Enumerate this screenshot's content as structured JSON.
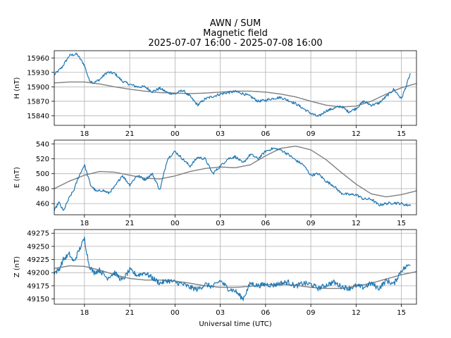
{
  "title": {
    "line1": "AWN / SUM",
    "line2": "Magnetic field",
    "line3": "2025-07-07 16:00 - 2025-07-08 16:00"
  },
  "xlabel": "Universal time (UTC)",
  "colors": {
    "observed": "#1f77b4",
    "reference": "#808080",
    "grid": "#b0b0b0"
  },
  "chart_data": [
    {
      "type": "line",
      "ylabel": "H (nT)",
      "x_hours_range": [
        0,
        24
      ],
      "x_tick_hours": [
        2,
        5,
        8,
        11,
        14,
        17,
        20,
        23
      ],
      "x_tick_labels": [
        "18",
        "21",
        "00",
        "03",
        "06",
        "09",
        "12",
        "15"
      ],
      "ylim": [
        15820,
        15975
      ],
      "yticks": [
        15840,
        15870,
        15900,
        15930,
        15960
      ],
      "series": [
        {
          "name": "observed",
          "x": [
            0,
            0.5,
            1,
            1.5,
            2,
            2.3,
            2.6,
            3,
            3.5,
            4,
            4.5,
            5,
            5.5,
            6,
            6.5,
            7,
            7.5,
            8,
            8.5,
            9,
            9.5,
            10,
            10.5,
            11,
            11.5,
            12,
            12.5,
            13,
            13.5,
            14,
            14.5,
            15,
            15.5,
            16,
            16.5,
            17,
            17.5,
            18,
            18.5,
            19,
            19.5,
            20,
            20.5,
            21,
            21.5,
            22,
            22.5,
            23,
            23.3,
            23.6
          ],
          "y": [
            15925,
            15940,
            15965,
            15968,
            15945,
            15915,
            15908,
            15915,
            15930,
            15928,
            15912,
            15905,
            15900,
            15900,
            15890,
            15897,
            15888,
            15885,
            15893,
            15880,
            15862,
            15875,
            15880,
            15885,
            15888,
            15890,
            15886,
            15880,
            15870,
            15872,
            15876,
            15878,
            15872,
            15865,
            15855,
            15845,
            15838,
            15850,
            15855,
            15860,
            15848,
            15855,
            15870,
            15862,
            15866,
            15880,
            15895,
            15875,
            15900,
            15928
          ]
        },
        {
          "name": "reference",
          "x": [
            0,
            1,
            2,
            3,
            4,
            5,
            6,
            7,
            8,
            9,
            10,
            11,
            12,
            13,
            14,
            15,
            16,
            17,
            18,
            19,
            20,
            21,
            22,
            23,
            24
          ],
          "y": [
            15908,
            15910,
            15910,
            15906,
            15900,
            15895,
            15891,
            15888,
            15887,
            15886,
            15887,
            15889,
            15891,
            15891,
            15889,
            15885,
            15879,
            15870,
            15862,
            15858,
            15860,
            15870,
            15885,
            15898,
            15907
          ]
        }
      ]
    },
    {
      "type": "line",
      "ylabel": "E (nT)",
      "x_hours_range": [
        0,
        24
      ],
      "x_tick_hours": [
        2,
        5,
        8,
        11,
        14,
        17,
        20,
        23
      ],
      "x_tick_labels": [
        "18",
        "21",
        "00",
        "03",
        "06",
        "09",
        "12",
        "15"
      ],
      "ylim": [
        445,
        545
      ],
      "yticks": [
        460,
        480,
        500,
        520,
        540
      ],
      "series": [
        {
          "name": "observed",
          "x": [
            0,
            0.3,
            0.6,
            1,
            1.3,
            1.6,
            2,
            2.4,
            2.8,
            3.2,
            3.6,
            4,
            4.5,
            5,
            5.5,
            6,
            6.5,
            7,
            7.5,
            8,
            8.5,
            9,
            9.5,
            10,
            10.5,
            11,
            11.5,
            12,
            12.5,
            13,
            13.5,
            14,
            14.5,
            15,
            15.5,
            16,
            16.5,
            17,
            17.5,
            18,
            18.5,
            19,
            19.5,
            20,
            20.5,
            21,
            21.5,
            22,
            22.5,
            23,
            23.3,
            23.6
          ],
          "y": [
            450,
            462,
            450,
            468,
            478,
            495,
            512,
            485,
            476,
            478,
            474,
            482,
            498,
            485,
            498,
            492,
            500,
            478,
            520,
            530,
            520,
            510,
            522,
            520,
            500,
            510,
            520,
            523,
            514,
            526,
            520,
            530,
            534,
            532,
            526,
            518,
            512,
            498,
            500,
            490,
            484,
            474,
            472,
            472,
            466,
            466,
            458,
            460,
            461,
            460,
            458,
            458
          ]
        },
        {
          "name": "reference",
          "x": [
            0,
            1,
            2,
            3,
            4,
            5,
            6,
            7,
            8,
            9,
            10,
            11,
            12,
            13,
            14,
            15,
            16,
            17,
            18,
            19,
            20,
            21,
            22,
            23,
            24
          ],
          "y": [
            480,
            490,
            498,
            503,
            502,
            498,
            494,
            493,
            497,
            503,
            507,
            509,
            508,
            512,
            524,
            534,
            537,
            532,
            519,
            502,
            486,
            473,
            469,
            472,
            477
          ]
        }
      ]
    },
    {
      "type": "line",
      "ylabel": "Z (nT)",
      "x_hours_range": [
        0,
        24
      ],
      "x_tick_hours": [
        2,
        5,
        8,
        11,
        14,
        17,
        20,
        23
      ],
      "x_tick_labels": [
        "18",
        "21",
        "00",
        "03",
        "06",
        "09",
        "12",
        "15"
      ],
      "ylim": [
        49140,
        49282
      ],
      "yticks": [
        49150,
        49175,
        49200,
        49225,
        49250,
        49275
      ],
      "series": [
        {
          "name": "observed",
          "x": [
            0,
            0.3,
            0.6,
            1,
            1.3,
            1.6,
            2,
            2.3,
            2.6,
            3,
            3.5,
            4,
            4.5,
            5,
            5.5,
            6,
            6.5,
            7,
            7.5,
            8,
            8.5,
            9,
            9.5,
            10,
            10.5,
            11,
            11.5,
            12,
            12.5,
            13,
            13.5,
            14,
            14.5,
            15,
            15.5,
            16,
            16.5,
            17,
            17.5,
            18,
            18.5,
            19,
            19.5,
            20,
            20.5,
            21,
            21.5,
            22,
            22.5,
            23,
            23.3,
            23.6
          ],
          "y": [
            49200,
            49205,
            49225,
            49235,
            49220,
            49240,
            49265,
            49215,
            49200,
            49205,
            49190,
            49200,
            49185,
            49205,
            49195,
            49200,
            49190,
            49180,
            49185,
            49182,
            49178,
            49172,
            49168,
            49178,
            49173,
            49185,
            49170,
            49165,
            49150,
            49180,
            49175,
            49178,
            49176,
            49180,
            49182,
            49174,
            49180,
            49178,
            49170,
            49176,
            49182,
            49174,
            49170,
            49175,
            49172,
            49180,
            49170,
            49185,
            49178,
            49205,
            49210,
            49218
          ]
        },
        {
          "name": "reference",
          "x": [
            0,
            1,
            2,
            3,
            4,
            5,
            6,
            7,
            8,
            9,
            10,
            11,
            12,
            13,
            14,
            15,
            16,
            17,
            18,
            19,
            20,
            21,
            22,
            23,
            24
          ],
          "y": [
            49208,
            49213,
            49212,
            49205,
            49196,
            49189,
            49186,
            49186,
            49184,
            49180,
            49175,
            49172,
            49172,
            49174,
            49177,
            49178,
            49176,
            49172,
            49170,
            49170,
            49174,
            49180,
            49188,
            49196,
            49202
          ]
        }
      ]
    }
  ]
}
